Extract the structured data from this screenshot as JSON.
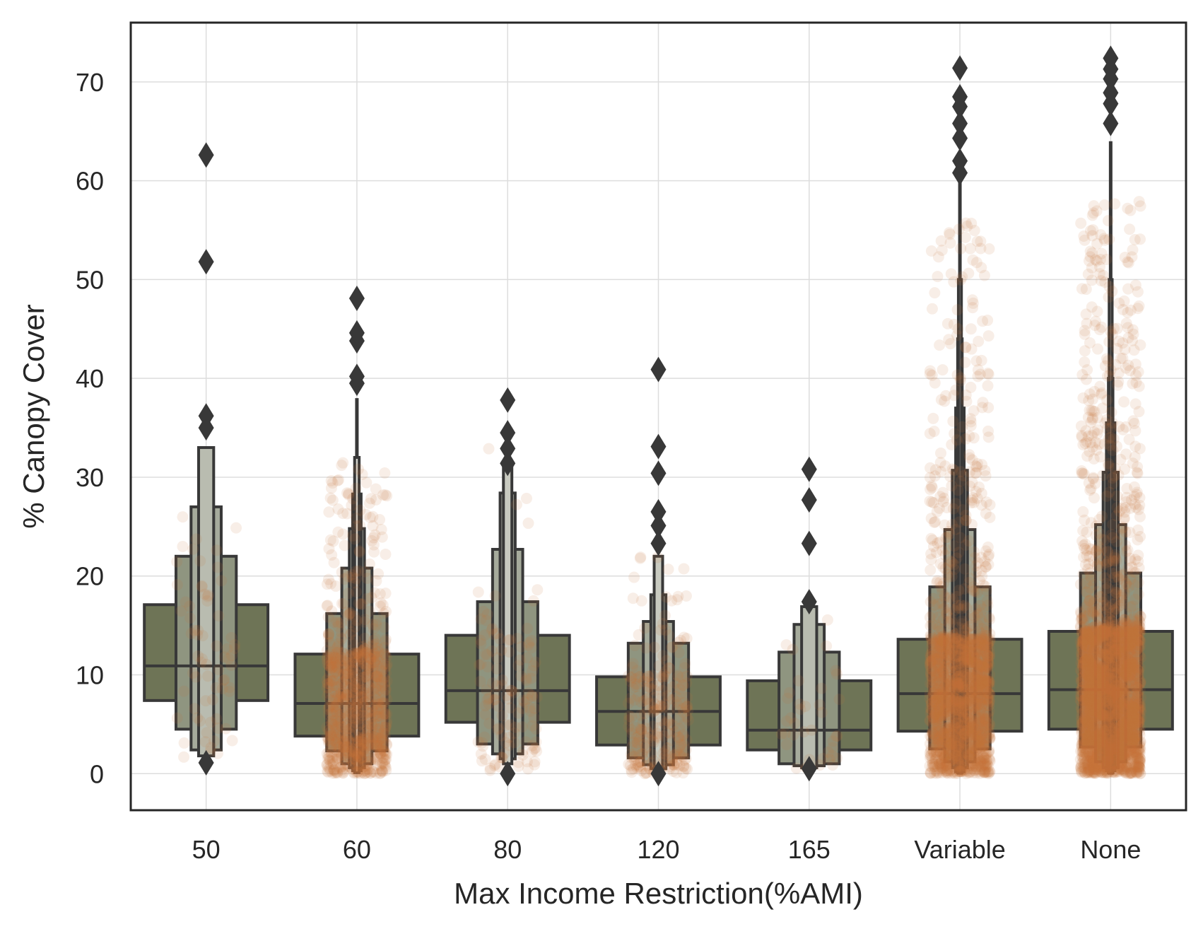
{
  "chart_data": {
    "type": "boxen",
    "xlabel": "Max Income Restriction(%AMI)",
    "ylabel": "% Canopy Cover",
    "ylim": [
      -3.7,
      76
    ],
    "yticks": [
      0,
      10,
      20,
      30,
      40,
      50,
      60,
      70
    ],
    "grid": true,
    "categories": [
      "50",
      "60",
      "80",
      "120",
      "165",
      "Variable",
      "None"
    ],
    "colors": {
      "box_fill": "#6e7456",
      "box_edge": "#383838",
      "point": "#c87436",
      "outlier": "#383838",
      "grid": "#dddddd",
      "frame": "#262626"
    },
    "series": [
      {
        "category": "50",
        "median": 10.9,
        "levels": [
          [
            7.4,
            17.1
          ],
          [
            4.5,
            22.0
          ],
          [
            2.4,
            27.0
          ],
          [
            1.8,
            33.0
          ]
        ],
        "box_half_width": [
          0.41,
          0.2,
          0.1,
          0.05
        ],
        "whisker": [
          1.3,
          33.0
        ],
        "outliers": [
          1.1,
          35.0,
          36.2,
          51.8,
          62.6
        ],
        "point_density": 70,
        "point_range": [
          1.5,
          30.0
        ]
      },
      {
        "category": "60",
        "median": 7.1,
        "levels": [
          [
            3.8,
            12.1
          ],
          [
            2.3,
            16.2
          ],
          [
            1.0,
            20.8
          ],
          [
            0.6,
            24.8
          ],
          [
            0.3,
            28.3
          ],
          [
            0.1,
            32.0
          ]
        ],
        "box_half_width": [
          0.41,
          0.2,
          0.1,
          0.05,
          0.028,
          0.015
        ],
        "whisker": [
          0.0,
          38.0
        ],
        "outliers": [
          39.5,
          40.2,
          43.8,
          44.6,
          48.1
        ],
        "point_density": 900,
        "point_range": [
          0.0,
          32.0
        ]
      },
      {
        "category": "80",
        "median": 8.4,
        "levels": [
          [
            5.2,
            14.0
          ],
          [
            3.0,
            17.4
          ],
          [
            2.0,
            22.7
          ],
          [
            1.5,
            28.4
          ],
          [
            1.0,
            31.0
          ]
        ],
        "box_half_width": [
          0.41,
          0.2,
          0.1,
          0.05,
          0.028
        ],
        "whisker": [
          0.5,
          31.0
        ],
        "outliers": [
          0.0,
          31.4,
          32.9,
          34.5,
          37.8
        ],
        "point_density": 130,
        "point_range": [
          0.3,
          33.0
        ]
      },
      {
        "category": "120",
        "median": 6.3,
        "levels": [
          [
            2.9,
            9.8
          ],
          [
            1.6,
            13.2
          ],
          [
            0.9,
            15.4
          ],
          [
            0.5,
            18.1
          ],
          [
            0.2,
            22.0
          ]
        ],
        "box_half_width": [
          0.41,
          0.2,
          0.1,
          0.05,
          0.028
        ],
        "whisker": [
          0.0,
          22.0
        ],
        "outliers": [
          0.0,
          23.3,
          25.1,
          26.5,
          30.4,
          33.1,
          40.9
        ],
        "point_density": 260,
        "point_range": [
          0.0,
          22.0
        ]
      },
      {
        "category": "165",
        "median": 4.4,
        "levels": [
          [
            2.4,
            9.4
          ],
          [
            1.0,
            12.3
          ],
          [
            0.8,
            15.1
          ],
          [
            0.6,
            16.9
          ]
        ],
        "box_half_width": [
          0.41,
          0.2,
          0.1,
          0.05
        ],
        "whisker": [
          0.6,
          16.9
        ],
        "outliers": [
          0.5,
          17.4,
          23.3,
          27.7,
          30.8
        ],
        "point_density": 40,
        "point_range": [
          0.5,
          16.5
        ]
      },
      {
        "category": "Variable",
        "median": 8.1,
        "levels": [
          [
            4.3,
            13.6
          ],
          [
            2.5,
            18.9
          ],
          [
            1.2,
            24.7
          ],
          [
            0.6,
            30.7
          ],
          [
            0.2,
            37.0
          ],
          [
            0.1,
            44.0
          ],
          [
            0.05,
            50.0
          ]
        ],
        "box_half_width": [
          0.41,
          0.2,
          0.1,
          0.05,
          0.028,
          0.015,
          0.01
        ],
        "whisker": [
          0.0,
          60.0
        ],
        "outliers": [
          60.8,
          62.0,
          64.3,
          65.8,
          67.5,
          68.5,
          71.4
        ],
        "point_density": 1800,
        "point_range": [
          0.0,
          56.0
        ]
      },
      {
        "category": "None",
        "median": 8.5,
        "levels": [
          [
            4.5,
            14.4
          ],
          [
            2.7,
            20.3
          ],
          [
            1.2,
            25.2
          ],
          [
            0.6,
            30.5
          ],
          [
            0.3,
            35.5
          ],
          [
            0.1,
            40.0
          ],
          [
            0.05,
            50.0
          ]
        ],
        "box_half_width": [
          0.41,
          0.2,
          0.1,
          0.05,
          0.028,
          0.015,
          0.01
        ],
        "whisker": [
          0.0,
          64.0
        ],
        "outliers": [
          65.8,
          67.8,
          68.9,
          70.3,
          71.3,
          72.4
        ],
        "point_density": 2600,
        "point_range": [
          0.0,
          58.0
        ]
      }
    ]
  }
}
